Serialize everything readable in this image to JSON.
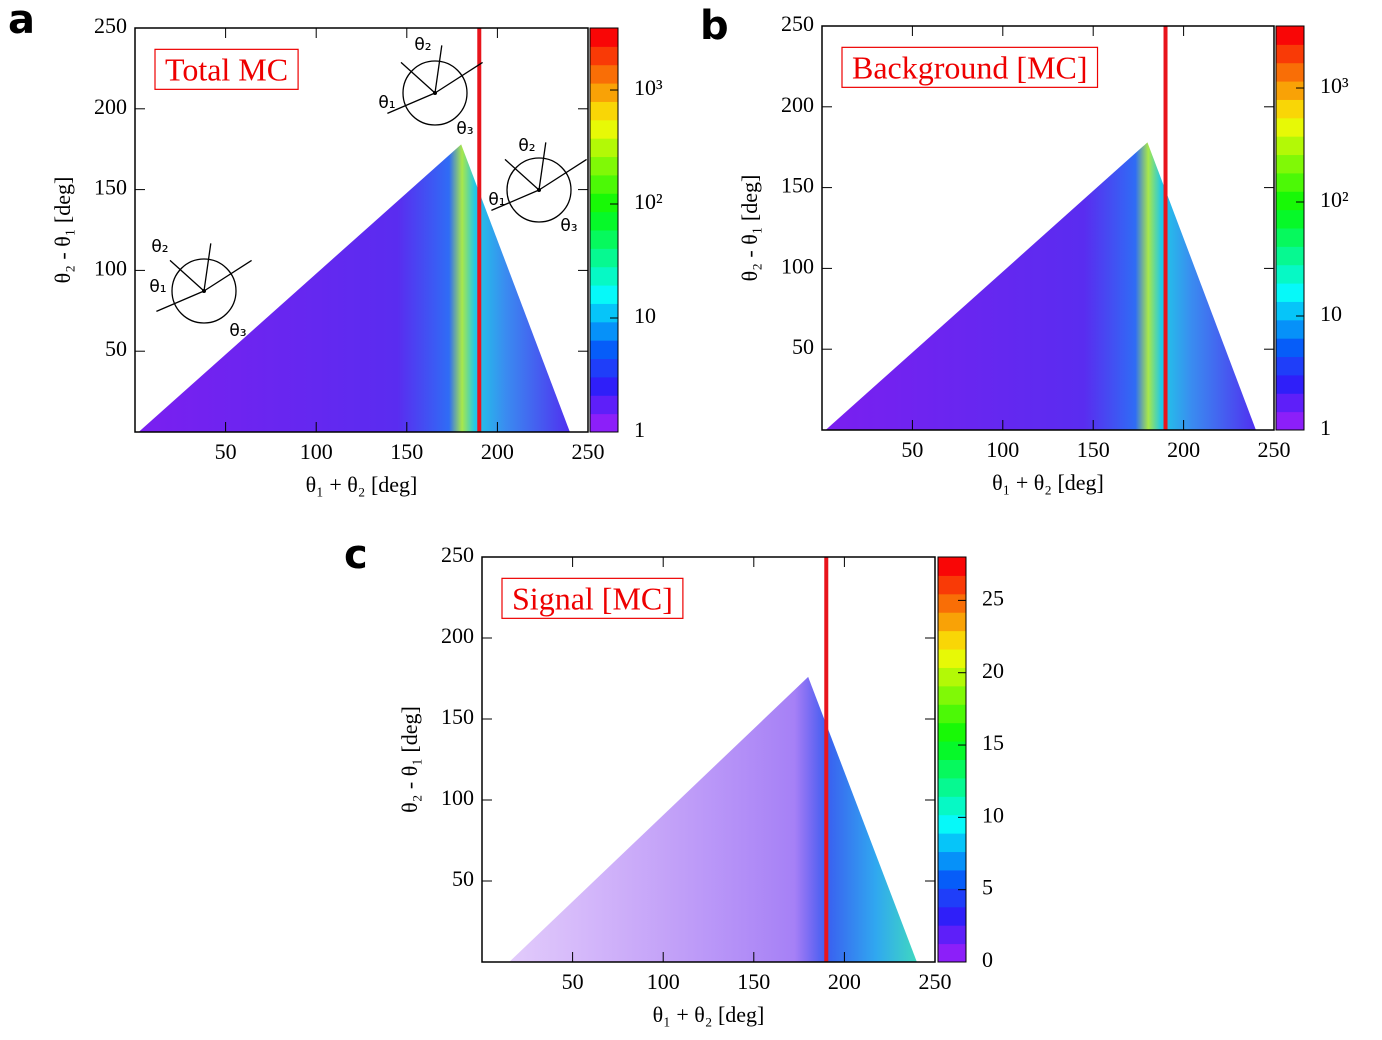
{
  "chart_data": [
    {
      "type": "heatmap",
      "panel": "a",
      "label": "Total MC",
      "xlabel": "θ₁ + θ₂ [deg]",
      "ylabel": "θ₂ - θ₁ [deg]",
      "xlim": [
        0,
        250
      ],
      "xticks": [
        50,
        100,
        150,
        200,
        250
      ],
      "ylim": [
        0,
        250
      ],
      "yticks": [
        50,
        100,
        150,
        200,
        250
      ],
      "colorbar": {
        "log": true,
        "zlim": [
          1,
          3500
        ],
        "ticks": [
          1,
          10,
          {
            "value": 100,
            "label": "10²"
          },
          {
            "value": 1000,
            "label": "10³"
          }
        ]
      },
      "cut_line": 190,
      "envelope": {
        "x": [
          2,
          180,
          240
        ],
        "y": [
          0,
          178,
          0
        ]
      },
      "diagram_labels": [
        "θ₁",
        "θ₂",
        "θ₃"
      ]
    },
    {
      "type": "heatmap",
      "panel": "b",
      "label": "Background [MC]",
      "xlabel": "θ₁ + θ₂ [deg]",
      "ylabel": "θ₂ - θ₁ [deg]",
      "xlim": [
        0,
        250
      ],
      "xticks": [
        50,
        100,
        150,
        200,
        250
      ],
      "ylim": [
        0,
        250
      ],
      "yticks": [
        50,
        100,
        150,
        200,
        250
      ],
      "colorbar": {
        "log": true,
        "zlim": [
          1,
          3500
        ],
        "ticks": [
          1,
          10,
          {
            "value": 100,
            "label": "10²"
          },
          {
            "value": 1000,
            "label": "10³"
          }
        ]
      },
      "cut_line": 190,
      "envelope": {
        "x": [
          2,
          180,
          240
        ],
        "y": [
          0,
          178,
          0
        ]
      }
    },
    {
      "type": "heatmap",
      "panel": "c",
      "label": "Signal [MC]",
      "xlabel": "θ₁ + θ₂ [deg]",
      "ylabel": "θ₂ - θ₁ [deg]",
      "xlim": [
        0,
        250
      ],
      "xticks": [
        50,
        100,
        150,
        200,
        250
      ],
      "ylim": [
        0,
        250
      ],
      "yticks": [
        50,
        100,
        150,
        200,
        250
      ],
      "colorbar": {
        "log": false,
        "zlim": [
          0,
          28
        ],
        "ticks": [
          0,
          5,
          10,
          15,
          20,
          25
        ]
      },
      "cut_line": 190,
      "envelope": {
        "x": [
          15,
          180,
          240
        ],
        "y": [
          0,
          176,
          0
        ]
      }
    }
  ]
}
